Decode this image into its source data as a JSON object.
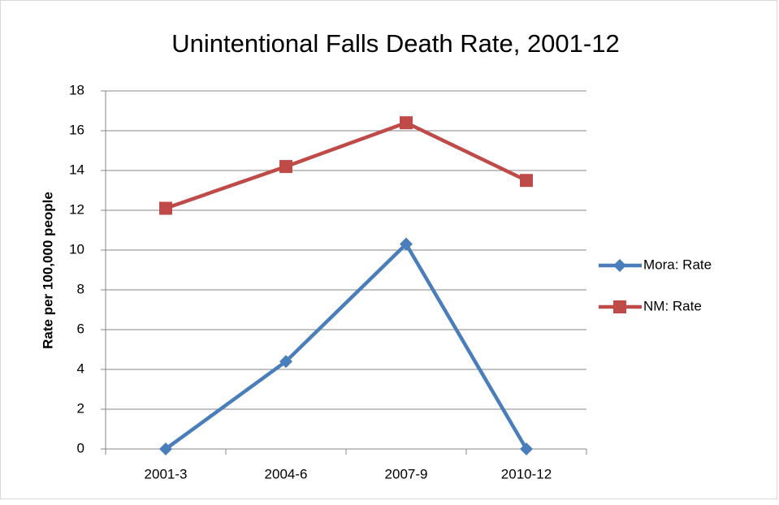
{
  "chart_data": {
    "type": "line",
    "title": "Unintentional Falls Death Rate, 2001-12",
    "y_label": "Rate per 100,000 people",
    "categories": [
      "2001-3",
      "2004-6",
      "2007-9",
      "2010-12"
    ],
    "series": [
      {
        "name": "Mora: Rate",
        "color": "#4a7ebb",
        "marker": "diamond",
        "values": [
          0,
          4.4,
          10.3,
          0
        ]
      },
      {
        "name": "NM: Rate",
        "color": "#be4b48",
        "marker": "square",
        "values": [
          12.1,
          14.2,
          16.4,
          13.5
        ]
      }
    ],
    "ylim": [
      0,
      18
    ],
    "yticks": [
      0,
      2,
      4,
      6,
      8,
      10,
      12,
      14,
      16,
      18
    ],
    "grid": true,
    "legend": "right"
  }
}
